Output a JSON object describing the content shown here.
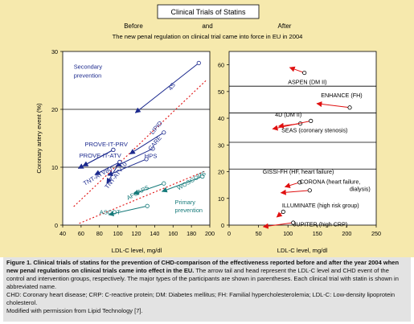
{
  "header": {
    "box_title": "Clinical Trials of Statins",
    "before": "Before",
    "and": "and",
    "after": "After",
    "subtitle": "The new penal regulation on clinical trial came into force in EU in 2004"
  },
  "caption": {
    "title": "Figure 1. Clinical trials of statins for the prevention of CHD-comparison of the effectiveness reported before and after the year 2004 when new penal regulations on clinical trials came into effect in the EU.",
    "body": "The arrow tail and head represent the LDL-C level and CHD event of the control and intervention groups, respectively. The major types of the participants are shown in parentheses. Each clinical trial with statin is shown in abbreviated name.",
    "abbrev": "CHD: Coronary heart disease; CRP: C-reactive protein; DM: Diabetes mellitus; FH: Familial hypercholesterolemia; LDL-C: Low-density lipoprotein cholesterol.",
    "source": "Modified with permission from Lipid Technology [7]."
  },
  "colors": {
    "panel_bg": "#f6e9ad",
    "secondary": "#1c2a8e",
    "primary": "#167a7a",
    "arrow_red": "#e01010",
    "reg_line": "#e01010"
  },
  "chart_data": [
    {
      "type": "scatter",
      "panel": "before",
      "xlabel": "LDL-C level, mg/dl",
      "ylabel": "Coronary artery event (%)",
      "xlim": [
        40,
        200
      ],
      "ylim": [
        0,
        30
      ],
      "xticks": [
        40,
        60,
        80,
        100,
        120,
        140,
        160,
        180,
        200
      ],
      "yticks": [
        0,
        10,
        20,
        30
      ],
      "hlines": [
        10,
        20
      ],
      "group_labels": [
        {
          "text": "Secondary",
          "x": 52,
          "y": 27,
          "group": "secondary"
        },
        {
          "text": "prevention",
          "x": 52,
          "y": 25.5,
          "group": "secondary"
        },
        {
          "text": "Primary",
          "x": 162,
          "y": 3.6,
          "group": "primary"
        },
        {
          "text": "prevention",
          "x": 162,
          "y": 2.2,
          "group": "primary"
        }
      ],
      "series": [
        {
          "name": "4S",
          "group": "secondary",
          "from": [
            188,
            28.0
          ],
          "to": [
            119,
            19.4
          ],
          "label_x": 158,
          "label_y": 23.2,
          "angle": -54
        },
        {
          "name": "LIPID",
          "group": "secondary",
          "from": [
            150,
            16.0
          ],
          "to": [
            113,
            12.3
          ],
          "label_x": 138,
          "label_y": 15.6,
          "angle": -50
        },
        {
          "name": "CARE",
          "group": "secondary",
          "from": [
            138,
            13.2
          ],
          "to": [
            98,
            10.2
          ],
          "label_x": 136,
          "label_y": 12.8,
          "angle": -50
        },
        {
          "name": "HPS",
          "group": "secondary",
          "from": [
            131,
            11.4
          ],
          "to": [
            89,
            8.6
          ],
          "label_x": 129,
          "label_y": 11.6,
          "angle": 0
        },
        {
          "name": "PROVE-IT-PRV",
          "group": "secondary",
          "from": [
            95,
            13.0
          ],
          "to": [
            62,
            10.2
          ],
          "label_x": 64,
          "label_y": 13.6,
          "angle": 0
        },
        {
          "name": "PROVE-IT-ATV",
          "group": "secondary",
          "from": [
            95,
            13.0
          ],
          "to": [
            57,
            9.8
          ],
          "label_x": 58,
          "label_y": 11.7,
          "angle": 0
        },
        {
          "name": "TNT-ATV80",
          "group": "secondary",
          "from": [
            102,
            10.9
          ],
          "to": [
            75,
            8.7
          ],
          "label_x": 64,
          "label_y": 6.8,
          "angle": -30
        },
        {
          "name": "TNT-ATV10",
          "group": "secondary",
          "from": [
            102,
            10.9
          ],
          "to": [
            88,
            7.2
          ],
          "label_x": 89,
          "label_y": 6.2,
          "angle": -52
        },
        {
          "name": "AFCAPS",
          "group": "primary",
          "from": [
            150,
            7.2
          ],
          "to": [
            117,
            5.4
          ],
          "label_x": 111,
          "label_y": 4.3,
          "angle": -28
        },
        {
          "name": "ASCOT",
          "group": "primary",
          "from": [
            132,
            3.3
          ],
          "to": [
            90,
            1.8
          ],
          "label_x": 80,
          "label_y": 1.9,
          "angle": 0
        },
        {
          "name": "WOSCOPS",
          "group": "primary",
          "from": [
            192,
            8.4
          ],
          "to": [
            148,
            5.8
          ],
          "label_x": 166,
          "label_y": 6.0,
          "angle": -30
        }
      ]
    },
    {
      "type": "scatter",
      "panel": "after",
      "xlabel": "LDL-C level, mg/dl",
      "ylabel": "",
      "xlim": [
        0,
        250
      ],
      "ylim": [
        0,
        65
      ],
      "xticks": [
        0,
        50,
        100,
        150,
        200,
        250
      ],
      "yticks": [
        0,
        10,
        20,
        30,
        40,
        50,
        60
      ],
      "hlines": [
        21,
        31,
        42,
        52
      ],
      "series": [
        {
          "name": "ASPEN (DM II)",
          "from": [
            128,
            57.0
          ],
          "to": [
            103,
            59.0
          ],
          "label_x": 100,
          "label_y": 52.8
        },
        {
          "name": "ENHANCE (FH)",
          "from": [
            205,
            44.0
          ],
          "to": [
            149,
            45.5
          ],
          "label_x": 156,
          "label_y": 47.8
        },
        {
          "name": "4D (DM II)",
          "from": [
            121,
            38.0
          ],
          "to": [
            84,
            37.0
          ],
          "label_x": 78,
          "label_y": 40.7
        },
        {
          "name": "SEAS (coronary stenosis)",
          "from": [
            139,
            39.0
          ],
          "to": [
            74,
            36.0
          ],
          "label_x": 89,
          "label_y": 34.7
        },
        {
          "name": "GISSI-FH (HF, heart failure)",
          "from": [
            120,
            16.0
          ],
          "to": [
            95,
            14.3
          ],
          "label_x": 57,
          "label_y": 19.2
        },
        {
          "name": "CORONA (heart failure, dialysis)",
          "from": [
            137,
            13.0
          ],
          "to": [
            88,
            12.1
          ],
          "label_x": 120,
          "label_y": 15.5
        },
        {
          "name": "ILLUMINATE (high risk group)",
          "from": [
            92,
            5.0
          ],
          "to": [
            81,
            3.0
          ],
          "label_x": 90,
          "label_y": 6.6
        },
        {
          "name": "JUPITER (high CRP)",
          "from": [
            109,
            0.9
          ],
          "to": [
            58,
            -0.6
          ],
          "label_x": 109,
          "label_y": -0.5
        }
      ]
    }
  ]
}
